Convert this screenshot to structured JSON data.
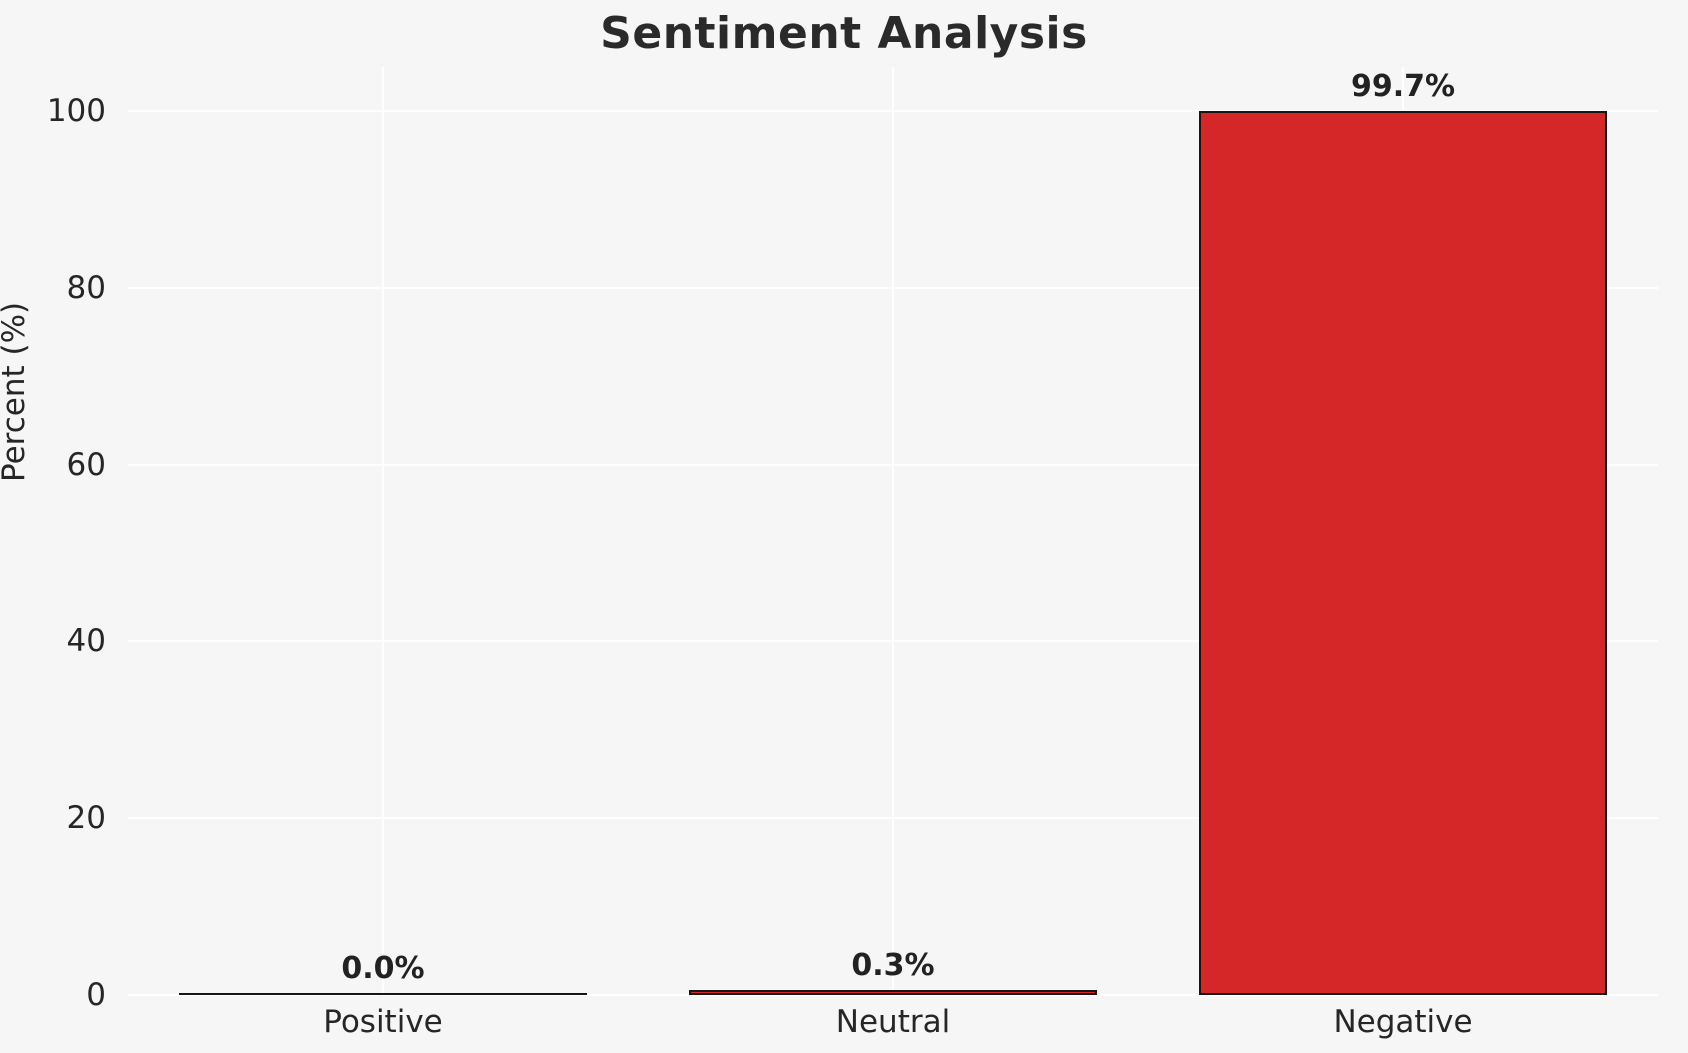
{
  "chart_data": {
    "type": "bar",
    "title": "Sentiment Analysis",
    "ylabel": "Percent (%)",
    "xlabel": "",
    "categories": [
      "Positive",
      "Neutral",
      "Negative"
    ],
    "values": [
      0.0,
      0.3,
      99.7
    ],
    "value_labels": [
      "0.0%",
      "0.3%",
      "99.7%"
    ],
    "yticks": [
      0,
      20,
      40,
      60,
      80,
      100
    ],
    "ylim": [
      0,
      105
    ],
    "grid": true,
    "legend": "none",
    "colors": {
      "bar_fill": "#d62728",
      "bar_edge": "#161616",
      "background": "#f6f6f6",
      "gridline": "#ffffff",
      "text": "#262626"
    }
  }
}
